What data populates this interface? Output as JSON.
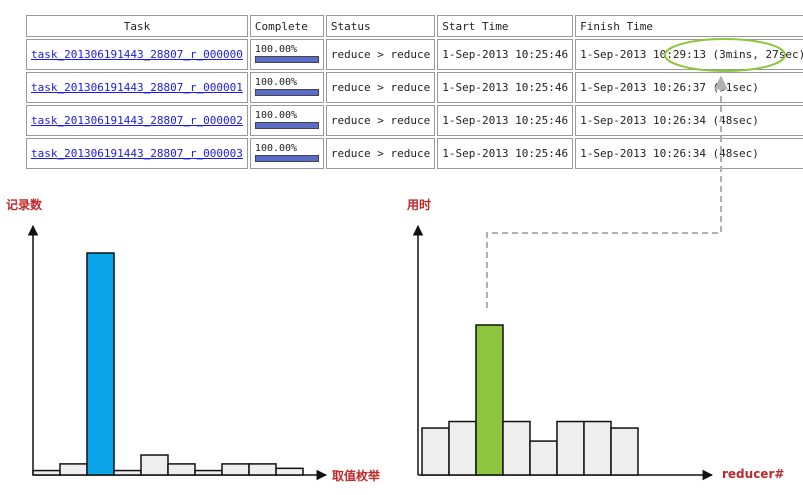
{
  "table": {
    "headers": [
      "Task",
      "Complete",
      "Status",
      "Start Time",
      "Finish Time"
    ],
    "rows": [
      {
        "task": "task_201306191443_28807_r_000000",
        "complete": "100.00%",
        "progress": 100,
        "status": "reduce > reduce",
        "start": "1-Sep-2013 10:25:46",
        "finish": "1-Sep-2013 10:29:13 (3mins, 27sec)"
      },
      {
        "task": "task_201306191443_28807_r_000001",
        "complete": "100.00%",
        "progress": 100,
        "status": "reduce > reduce",
        "start": "1-Sep-2013 10:25:46",
        "finish": "1-Sep-2013 10:26:37 (51sec)"
      },
      {
        "task": "task_201306191443_28807_r_000002",
        "complete": "100.00%",
        "progress": 100,
        "status": "reduce > reduce",
        "start": "1-Sep-2013 10:25:46",
        "finish": "1-Sep-2013 10:26:34 (48sec)"
      },
      {
        "task": "task_201306191443_28807_r_000003",
        "complete": "100.00%",
        "progress": 100,
        "status": "reduce > reduce",
        "start": "1-Sep-2013 10:25:46",
        "finish": "1-Sep-2013 10:26:34 (48sec)"
      }
    ]
  },
  "colors": {
    "highlight_ellipse": "#8cc63f",
    "connector": "#b0b0b0",
    "label_red": "#c0282a",
    "bar_gray": "#eeeeee",
    "bar_blue": "#0aa5e8",
    "bar_green": "#8cc63f"
  },
  "chart_data": [
    {
      "type": "bar",
      "ylabel": "记录数",
      "xlabel": "取值枚举",
      "values": [
        2,
        5,
        100,
        2,
        9,
        5,
        2,
        5,
        5,
        3
      ],
      "highlight_index": 2,
      "highlight_color": "#0aa5e8"
    },
    {
      "type": "bar",
      "ylabel": "用时",
      "xlabel": "reducer#",
      "values": [
        36,
        41,
        115,
        41,
        26,
        41,
        41,
        36
      ],
      "highlight_index": 2,
      "highlight_color": "#8cc63f"
    }
  ]
}
